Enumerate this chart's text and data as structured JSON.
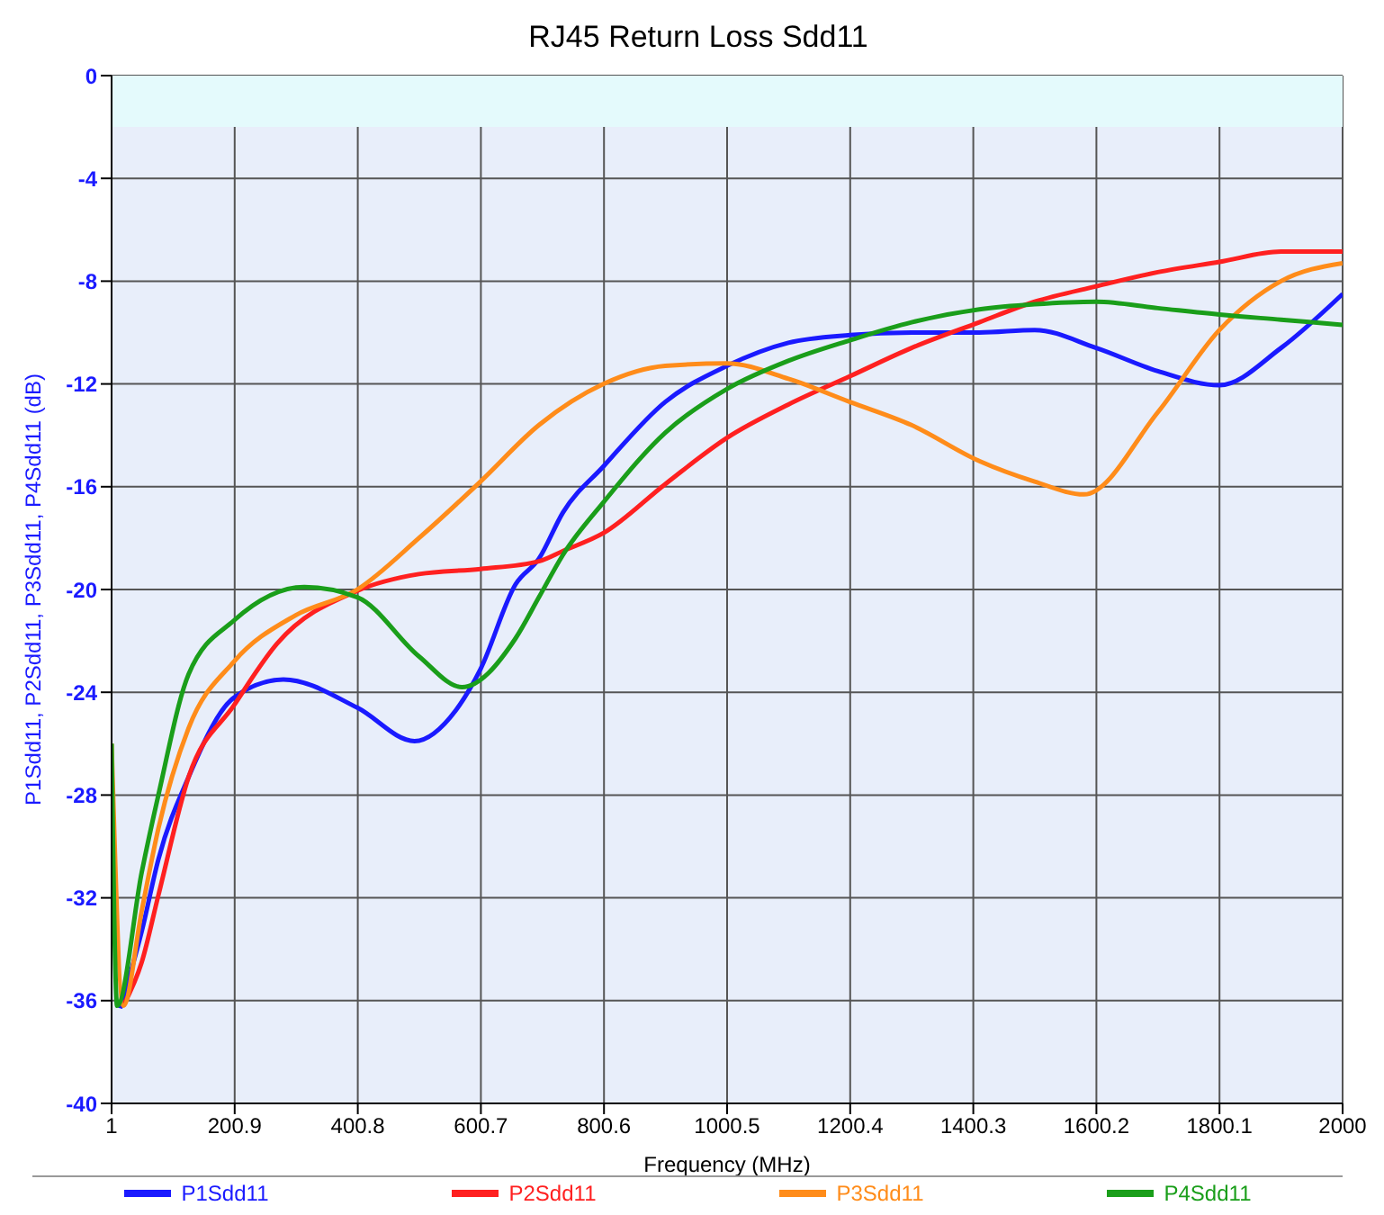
{
  "chart_data": {
    "type": "line",
    "title": "RJ45 Return Loss Sdd11",
    "xlabel": "Frequency (MHz)",
    "ylabel": "P1Sdd11, P2Sdd11, P3Sdd11, P4Sdd11 (dB)",
    "series": [
      {
        "name": "P1Sdd11",
        "color": "#1a1aff",
        "x": [
          15,
          50,
          77,
          126,
          200,
          280,
          400,
          493,
          560,
          600,
          657,
          695,
          734,
          800,
          900,
          1000,
          1100,
          1200,
          1300,
          1410,
          1500,
          1600,
          1700,
          1800,
          1900,
          2000
        ],
        "values": [
          -36.3,
          -33.3,
          -30.5,
          -27.3,
          -24.2,
          -23.5,
          -24.6,
          -25.9,
          -24.7,
          -23.1,
          -19.8,
          -18.8,
          -17,
          -15.2,
          -12.7,
          -11.3,
          -10.4,
          -10.1,
          -10,
          -10,
          -9.9,
          -10.6,
          -11.5,
          -12.05,
          -10.6,
          -8.5
        ]
      },
      {
        "name": "P2Sdd11",
        "color": "#ff2020",
        "x": [
          20,
          50,
          77,
          126,
          200,
          270,
          400,
          500,
          600,
          695,
          734,
          800,
          900,
          1000,
          1100,
          1200,
          1300,
          1410,
          1500,
          1600,
          1700,
          1800,
          1900,
          2000
        ],
        "values": [
          -36.2,
          -34.5,
          -31.9,
          -27.3,
          -24.5,
          -22.1,
          -20.05,
          -19.4,
          -19.2,
          -18.9,
          -18.5,
          -17.8,
          -15.9,
          -14.1,
          -12.8,
          -11.7,
          -10.6,
          -9.6,
          -8.8,
          -8.2,
          -7.65,
          -7.25,
          -6.85,
          -6.85
        ]
      },
      {
        "name": "P3Sdd11",
        "color": "#ff8c1a",
        "x": [
          1,
          20,
          50,
          77,
          126,
          200,
          300,
          400,
          500,
          600,
          695,
          800,
          900,
          1000,
          1100,
          1200,
          1300,
          1410,
          1500,
          1580,
          1700,
          1800,
          1900,
          2000
        ],
        "values": [
          -26,
          -36.2,
          -32.5,
          -29.3,
          -25.4,
          -22.8,
          -21,
          -20,
          -18,
          -15.8,
          -13.6,
          -12,
          -11.3,
          -11.2,
          -11.8,
          -12.7,
          -13.6,
          -15,
          -15.8,
          -16.3,
          -13.1,
          -9.9,
          -8,
          -7.3
        ]
      },
      {
        "name": "P4Sdd11",
        "color": "#1a9e1a",
        "x": [
          1,
          10,
          50,
          77,
          126,
          200,
          314,
          400,
          500,
          570,
          657,
          695,
          734,
          800,
          900,
          1000,
          1100,
          1200,
          1300,
          1410,
          1500,
          1600,
          1700,
          1800,
          1900,
          2000
        ],
        "values": [
          -26,
          -36.2,
          -31,
          -28,
          -23.3,
          -21.2,
          -19.9,
          -20.3,
          -22.6,
          -23.8,
          -21.9,
          -20.3,
          -18.65,
          -16.6,
          -13.9,
          -12.2,
          -11.1,
          -10.3,
          -9.6,
          -9.1,
          -8.9,
          -8.8,
          -9.05,
          -9.3,
          -9.5,
          -9.7
        ]
      }
    ],
    "xlim": [
      1,
      2000
    ],
    "xticks": [
      1,
      200.9,
      400.8,
      600.7,
      800.6,
      1000.5,
      1200.4,
      1400.3,
      1600.2,
      1800.1,
      2000
    ],
    "ylim": [
      -40,
      0
    ],
    "yticks": [
      -40,
      -36,
      -32,
      -28,
      -24,
      -20,
      -16,
      -12,
      -8,
      -4,
      0
    ],
    "bands": [
      {
        "axis": "y",
        "from": -2,
        "to": 0,
        "color": "#e4fafc"
      }
    ],
    "grid": true,
    "legend": "bottom",
    "marker": "none",
    "line_style": "solid"
  }
}
